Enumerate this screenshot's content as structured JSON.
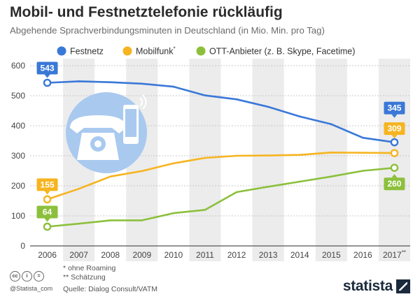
{
  "chart_data": {
    "type": "line",
    "title": "Mobil- und Festnetztelefonie rückläufig",
    "subtitle": "Abgehende Sprachverbindungsminuten in Deutschland (in Mio. Min. pro Tag)",
    "categories": [
      "2006",
      "2007",
      "2008",
      "2009",
      "2010",
      "2011",
      "2012",
      "2013",
      "2014",
      "2015",
      "2016",
      "2017"
    ],
    "last_category_suffix": "**",
    "ylim": [
      0,
      600
    ],
    "yticks": [
      "0",
      "100",
      "200",
      "300",
      "400",
      "500",
      "600"
    ],
    "grid": true,
    "legend_position": "top",
    "series": [
      {
        "name": "Festnetz",
        "color": "#3a78d8",
        "values": [
          543,
          548,
          545,
          540,
          530,
          501,
          488,
          463,
          431,
          405,
          360,
          345
        ]
      },
      {
        "name": "Mobilfunk",
        "name_suffix": "*",
        "color": "#f6b420",
        "values": [
          155,
          190,
          231,
          249,
          275,
          293,
          300,
          301,
          303,
          311,
          310,
          309
        ]
      },
      {
        "name": "OTT-Anbieter (z. B. Skype, Facetime)",
        "color": "#8cc03c",
        "values": [
          64,
          74,
          85,
          85,
          109,
          120,
          179,
          197,
          214,
          231,
          250,
          260
        ]
      }
    ],
    "data_labels": {
      "start": [
        "543",
        "155",
        "64"
      ],
      "end": [
        "345",
        "309",
        "260"
      ]
    }
  },
  "footer": {
    "note1": "*  ohne Roaming",
    "note2": "** Schätzung",
    "source": "Quelle: Dialog Consult/VATM",
    "handle": "@Statista_com",
    "brand": "statista"
  },
  "icons": [
    "telephone-icon",
    "smartphone-icon",
    "cc-license-icons",
    "statista-logo-icon"
  ]
}
